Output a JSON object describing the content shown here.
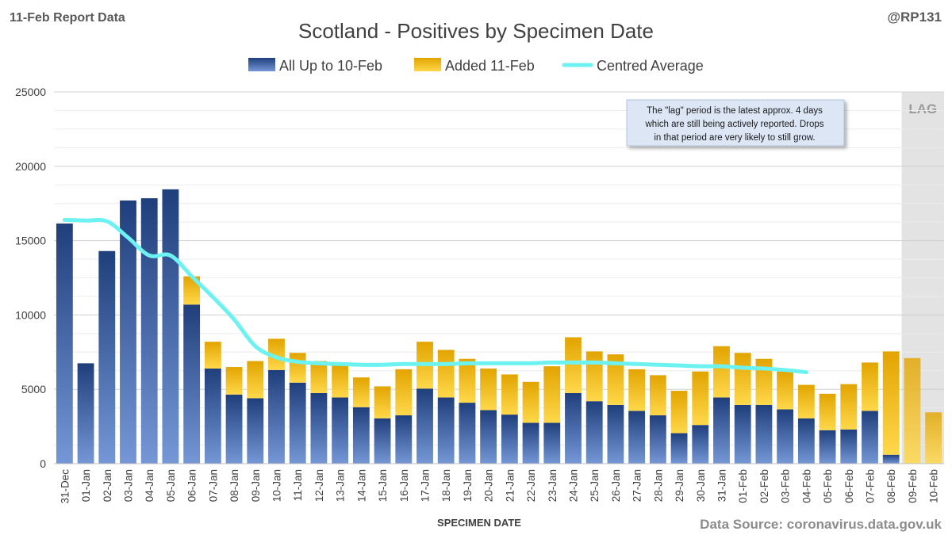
{
  "header": {
    "report_label": "11-Feb Report Data",
    "handle": "@RP131",
    "title": "Scotland - Positives by Specimen Date"
  },
  "footer": {
    "source": "Data Source: coronavirus.data.gov.uk"
  },
  "annotation": {
    "lines": [
      "The \"lag\" period is the latest approx. 4 days",
      "which are still being actively reported.  Drops",
      "in that period are very likely to still grow."
    ]
  },
  "colors": {
    "blue_top": "#1f3e7c",
    "blue_bottom": "#7597d6",
    "gold_top": "#e2a400",
    "gold_bottom": "#ffd84a",
    "average": "#6df2f2",
    "lag_shade": "#e3e3e3",
    "lag_label": "#9a9a9a"
  },
  "chart_data": {
    "type": "bar",
    "stacked": true,
    "title": "Scotland - Positives by Specimen Date",
    "xlabel": "SPECIMEN DATE",
    "ylabel": "",
    "ylim": [
      0,
      25000
    ],
    "yticks": [
      0,
      5000,
      10000,
      15000,
      20000,
      25000
    ],
    "grid": true,
    "legend_position": "top",
    "lag_label": "LAG",
    "lag_start_index": 40,
    "categories": [
      "31-Dec",
      "01-Jan",
      "02-Jan",
      "03-Jan",
      "04-Jan",
      "05-Jan",
      "06-Jan",
      "07-Jan",
      "08-Jan",
      "09-Jan",
      "10-Jan",
      "11-Jan",
      "12-Jan",
      "13-Jan",
      "14-Jan",
      "15-Jan",
      "16-Jan",
      "17-Jan",
      "18-Jan",
      "19-Jan",
      "20-Jan",
      "21-Jan",
      "22-Jan",
      "23-Jan",
      "24-Jan",
      "25-Jan",
      "26-Jan",
      "27-Jan",
      "28-Jan",
      "29-Jan",
      "30-Jan",
      "31-Jan",
      "01-Feb",
      "02-Feb",
      "03-Feb",
      "04-Feb",
      "05-Feb",
      "06-Feb",
      "07-Feb",
      "08-Feb",
      "09-Feb",
      "10-Feb"
    ],
    "series": [
      {
        "name": "All Up to 10-Feb",
        "type": "bar",
        "values": [
          16150,
          6750,
          14300,
          17700,
          17850,
          18450,
          10700,
          6400,
          4650,
          4400,
          6300,
          5450,
          4750,
          4450,
          3800,
          3050,
          3250,
          5050,
          4450,
          4100,
          3600,
          3300,
          2750,
          2750,
          4750,
          4200,
          3950,
          3550,
          3250,
          2050,
          2600,
          4450,
          3950,
          3950,
          3650,
          3050,
          2250,
          2300,
          3550,
          600,
          0,
          0
        ]
      },
      {
        "name": "Added 11-Feb",
        "type": "bar",
        "values": [
          0,
          0,
          0,
          0,
          0,
          0,
          1900,
          1800,
          1850,
          2500,
          2100,
          2000,
          2150,
          2150,
          2000,
          2150,
          3100,
          3150,
          3200,
          2950,
          2800,
          2700,
          2750,
          3800,
          3750,
          3350,
          3400,
          2800,
          2700,
          2850,
          3600,
          3450,
          3500,
          3100,
          2550,
          2250,
          2450,
          3050,
          3250,
          6950,
          7100,
          3450
        ]
      },
      {
        "name": "Centred Average",
        "type": "line",
        "values": [
          16400,
          16350,
          16300,
          15200,
          14000,
          14000,
          12600,
          11200,
          9700,
          7900,
          7150,
          6850,
          6750,
          6700,
          6650,
          6650,
          6700,
          6700,
          6700,
          6750,
          6750,
          6750,
          6750,
          6800,
          6800,
          6800,
          6750,
          6700,
          6650,
          6600,
          6550,
          6550,
          6450,
          6400,
          6300,
          6150,
          null,
          null,
          null,
          null,
          null,
          null
        ]
      }
    ]
  }
}
